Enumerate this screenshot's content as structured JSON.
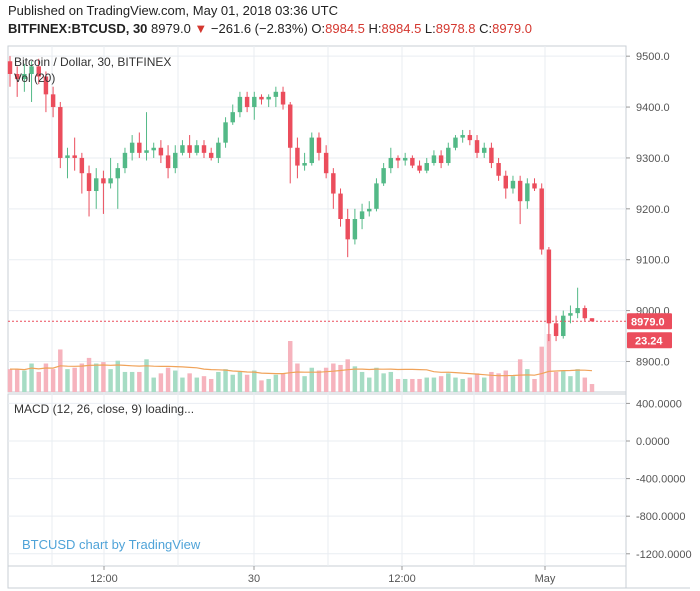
{
  "header": {
    "published": "Published on TradingView.com, May 01, 2018 03:36 UTC",
    "symbol": "BITFINEX:BTCUSD, 30",
    "last": "8979.0",
    "change": "−261.6 (−2.83%)",
    "o_label": "O:",
    "o_value": "8984.5",
    "h_label": "H:",
    "h_value": "8984.5",
    "l_label": "L:",
    "l_value": "8978.8",
    "c_label": "C:",
    "c_value": "8979.0"
  },
  "legend": {
    "title": "Bitcoin / Dollar, 30, BITFINEX",
    "volume": "Vol (20)"
  },
  "macd_label": "MACD (12, 26, close, 9) loading...",
  "watermark": "BTCUSD chart by TradingView",
  "badges": {
    "price": "8979.0",
    "volume": "23.24"
  },
  "colors": {
    "up": "#53b987",
    "down": "#eb4d5c",
    "up_vol": "#a6dcc4",
    "down_vol": "#f6b3bd",
    "ma": "#f0a35a",
    "grid": "#e9edf2"
  },
  "chart_data": [
    {
      "type": "candlestick",
      "title": "Bitcoin / Dollar, 30, BITFINEX",
      "ylim": [
        8840,
        9520
      ],
      "y_ticks": [
        "9500.0",
        "9400.0",
        "9300.0",
        "9200.0",
        "9100.0",
        "9000.0",
        "8900.0"
      ],
      "x_ticks": [
        "12:00",
        "30",
        "12:00",
        "May"
      ],
      "last_price": 8979.0,
      "candles": [
        {
          "o": 9490,
          "c": 9465,
          "h": 9500,
          "l": 9440
        },
        {
          "o": 9465,
          "c": 9455,
          "h": 9480,
          "l": 9420
        },
        {
          "o": 9455,
          "c": 9465,
          "h": 9485,
          "l": 9430
        },
        {
          "o": 9465,
          "c": 9480,
          "h": 9490,
          "l": 9410
        },
        {
          "o": 9480,
          "c": 9460,
          "h": 9495,
          "l": 9445
        },
        {
          "o": 9460,
          "c": 9425,
          "h": 9470,
          "l": 9390
        },
        {
          "o": 9425,
          "c": 9400,
          "h": 9440,
          "l": 9380
        },
        {
          "o": 9400,
          "c": 9300,
          "h": 9410,
          "l": 9280
        },
        {
          "o": 9300,
          "c": 9305,
          "h": 9320,
          "l": 9260
        },
        {
          "o": 9305,
          "c": 9300,
          "h": 9340,
          "l": 9275
        },
        {
          "o": 9300,
          "c": 9270,
          "h": 9310,
          "l": 9230
        },
        {
          "o": 9270,
          "c": 9235,
          "h": 9285,
          "l": 9185
        },
        {
          "o": 9235,
          "c": 9260,
          "h": 9280,
          "l": 9200
        },
        {
          "o": 9260,
          "c": 9250,
          "h": 9275,
          "l": 9190
        },
        {
          "o": 9250,
          "c": 9260,
          "h": 9300,
          "l": 9240
        },
        {
          "o": 9260,
          "c": 9280,
          "h": 9290,
          "l": 9200
        },
        {
          "o": 9280,
          "c": 9310,
          "h": 9320,
          "l": 9270
        },
        {
          "o": 9310,
          "c": 9330,
          "h": 9345,
          "l": 9295
        },
        {
          "o": 9330,
          "c": 9310,
          "h": 9350,
          "l": 9300
        },
        {
          "o": 9310,
          "c": 9315,
          "h": 9390,
          "l": 9295
        },
        {
          "o": 9315,
          "c": 9320,
          "h": 9330,
          "l": 9300
        },
        {
          "o": 9320,
          "c": 9305,
          "h": 9335,
          "l": 9290
        },
        {
          "o": 9305,
          "c": 9280,
          "h": 9325,
          "l": 9260
        },
        {
          "o": 9280,
          "c": 9310,
          "h": 9325,
          "l": 9270
        },
        {
          "o": 9310,
          "c": 9325,
          "h": 9335,
          "l": 9305
        },
        {
          "o": 9325,
          "c": 9310,
          "h": 9345,
          "l": 9300
        },
        {
          "o": 9310,
          "c": 9325,
          "h": 9335,
          "l": 9305
        },
        {
          "o": 9325,
          "c": 9310,
          "h": 9335,
          "l": 9300
        },
        {
          "o": 9310,
          "c": 9300,
          "h": 9320,
          "l": 9295
        },
        {
          "o": 9300,
          "c": 9330,
          "h": 9340,
          "l": 9290
        },
        {
          "o": 9330,
          "c": 9370,
          "h": 9380,
          "l": 9320
        },
        {
          "o": 9370,
          "c": 9390,
          "h": 9405,
          "l": 9365
        },
        {
          "o": 9390,
          "c": 9420,
          "h": 9430,
          "l": 9380
        },
        {
          "o": 9420,
          "c": 9400,
          "h": 9430,
          "l": 9390
        },
        {
          "o": 9400,
          "c": 9420,
          "h": 9430,
          "l": 9375
        },
        {
          "o": 9420,
          "c": 9415,
          "h": 9425,
          "l": 9405
        },
        {
          "o": 9415,
          "c": 9420,
          "h": 9425,
          "l": 9400
        },
        {
          "o": 9420,
          "c": 9430,
          "h": 9440,
          "l": 9400
        },
        {
          "o": 9430,
          "c": 9405,
          "h": 9440,
          "l": 9395
        },
        {
          "o": 9405,
          "c": 9320,
          "h": 9410,
          "l": 9250
        },
        {
          "o": 9320,
          "c": 9285,
          "h": 9340,
          "l": 9260
        },
        {
          "o": 9285,
          "c": 9290,
          "h": 9310,
          "l": 9275
        },
        {
          "o": 9290,
          "c": 9340,
          "h": 9350,
          "l": 9285
        },
        {
          "o": 9340,
          "c": 9310,
          "h": 9350,
          "l": 9295
        },
        {
          "o": 9310,
          "c": 9270,
          "h": 9325,
          "l": 9260
        },
        {
          "o": 9270,
          "c": 9230,
          "h": 9280,
          "l": 9200
        },
        {
          "o": 9230,
          "c": 9180,
          "h": 9240,
          "l": 9165
        },
        {
          "o": 9180,
          "c": 9140,
          "h": 9200,
          "l": 9105
        },
        {
          "o": 9140,
          "c": 9180,
          "h": 9200,
          "l": 9130
        },
        {
          "o": 9180,
          "c": 9195,
          "h": 9210,
          "l": 9160
        },
        {
          "o": 9195,
          "c": 9200,
          "h": 9215,
          "l": 9185
        },
        {
          "o": 9200,
          "c": 9250,
          "h": 9260,
          "l": 9195
        },
        {
          "o": 9250,
          "c": 9280,
          "h": 9290,
          "l": 9245
        },
        {
          "o": 9280,
          "c": 9300,
          "h": 9320,
          "l": 9270
        },
        {
          "o": 9300,
          "c": 9295,
          "h": 9305,
          "l": 9280
        },
        {
          "o": 9295,
          "c": 9300,
          "h": 9310,
          "l": 9285
        },
        {
          "o": 9300,
          "c": 9285,
          "h": 9305,
          "l": 9280
        },
        {
          "o": 9285,
          "c": 9275,
          "h": 9295,
          "l": 9270
        },
        {
          "o": 9275,
          "c": 9290,
          "h": 9300,
          "l": 9270
        },
        {
          "o": 9290,
          "c": 9305,
          "h": 9315,
          "l": 9285
        },
        {
          "o": 9305,
          "c": 9290,
          "h": 9315,
          "l": 9280
        },
        {
          "o": 9290,
          "c": 9320,
          "h": 9330,
          "l": 9285
        },
        {
          "o": 9320,
          "c": 9340,
          "h": 9345,
          "l": 9315
        },
        {
          "o": 9340,
          "c": 9345,
          "h": 9355,
          "l": 9330
        },
        {
          "o": 9345,
          "c": 9335,
          "h": 9355,
          "l": 9325
        },
        {
          "o": 9335,
          "c": 9310,
          "h": 9345,
          "l": 9300
        },
        {
          "o": 9310,
          "c": 9320,
          "h": 9330,
          "l": 9300
        },
        {
          "o": 9320,
          "c": 9290,
          "h": 9330,
          "l": 9280
        },
        {
          "o": 9290,
          "c": 9265,
          "h": 9300,
          "l": 9255
        },
        {
          "o": 9265,
          "c": 9240,
          "h": 9275,
          "l": 9220
        },
        {
          "o": 9240,
          "c": 9255,
          "h": 9265,
          "l": 9230
        },
        {
          "o": 9255,
          "c": 9215,
          "h": 9265,
          "l": 9170
        },
        {
          "o": 9215,
          "c": 9250,
          "h": 9260,
          "l": 9200
        },
        {
          "o": 9250,
          "c": 9240,
          "h": 9260,
          "l": 9235
        },
        {
          "o": 9240,
          "c": 9120,
          "h": 9250,
          "l": 9110
        },
        {
          "o": 9120,
          "c": 8975,
          "h": 9125,
          "l": 8940
        },
        {
          "o": 8975,
          "c": 8950,
          "h": 8990,
          "l": 8940
        },
        {
          "o": 8950,
          "c": 8990,
          "h": 9000,
          "l": 8945
        },
        {
          "o": 8990,
          "c": 8995,
          "h": 9010,
          "l": 8975
        },
        {
          "o": 8995,
          "c": 9005,
          "h": 9045,
          "l": 8985
        },
        {
          "o": 9005,
          "c": 8985,
          "h": 9010,
          "l": 8980
        },
        {
          "o": 8985,
          "c": 8979,
          "h": 8985,
          "l": 8978
        }
      ],
      "ma_volume_length": 20
    },
    {
      "type": "bar",
      "title": "Vol (20)",
      "last_volume": 23.24
    },
    {
      "type": "line",
      "title": "MACD (12, 26, close, 9) loading...",
      "y_ticks": [
        "400.0000",
        "0.0000",
        "-400.0000",
        "-800.0000",
        "-1200.0000"
      ],
      "ylim": [
        -1330,
        500
      ]
    }
  ]
}
